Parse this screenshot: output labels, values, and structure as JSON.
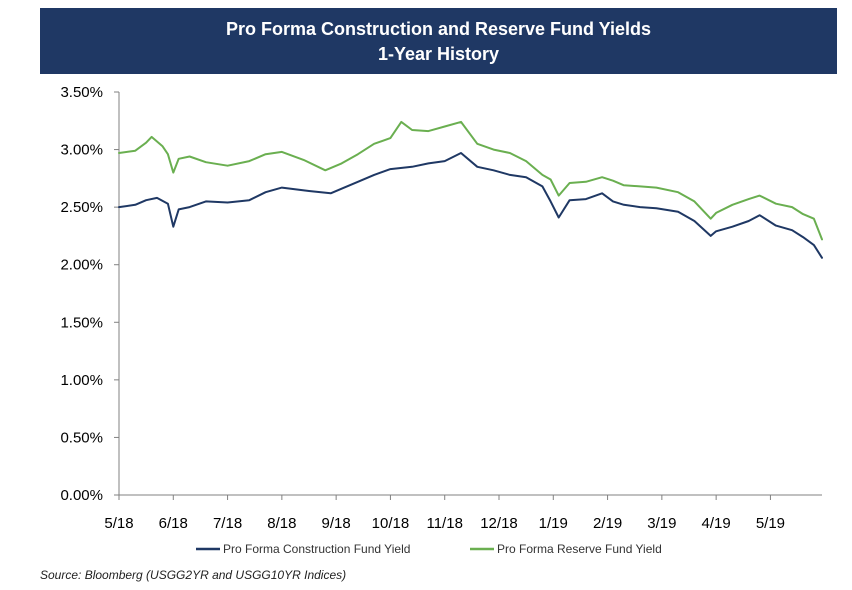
{
  "chart_data": {
    "type": "line",
    "title": "Pro Forma Construction and Reserve Fund Yields",
    "subtitle": "1-Year History",
    "ylim": [
      0,
      3.5
    ],
    "y_ticks": [
      "0.00%",
      "0.50%",
      "1.00%",
      "1.50%",
      "2.00%",
      "2.50%",
      "3.00%",
      "3.50%"
    ],
    "y_tick_values": [
      0,
      0.5,
      1.0,
      1.5,
      2.0,
      2.5,
      3.0,
      3.5
    ],
    "x_ticks": [
      "5/18",
      "6/18",
      "7/18",
      "8/18",
      "9/18",
      "10/18",
      "11/18",
      "12/18",
      "1/19",
      "2/19",
      "3/19",
      "4/19",
      "5/19"
    ],
    "x_tick_values": [
      0,
      1,
      2,
      3,
      4,
      5,
      6,
      7,
      8,
      9,
      10,
      11,
      12
    ],
    "xlim": [
      0,
      12.95
    ],
    "series": [
      {
        "name": "Pro Forma Construction Fund Yield",
        "color": "#1f3864",
        "x": [
          0.0,
          0.3,
          0.5,
          0.7,
          0.9,
          1.0,
          1.1,
          1.3,
          1.6,
          2.0,
          2.4,
          2.7,
          3.0,
          3.5,
          3.9,
          4.1,
          4.4,
          4.7,
          5.0,
          5.4,
          5.7,
          6.0,
          6.3,
          6.6,
          6.9,
          7.2,
          7.5,
          7.8,
          7.95,
          8.1,
          8.3,
          8.6,
          8.9,
          9.1,
          9.3,
          9.6,
          9.9,
          10.3,
          10.6,
          10.9,
          11.0,
          11.3,
          11.6,
          11.8,
          12.1,
          12.4,
          12.6,
          12.8,
          12.95
        ],
        "values": [
          2.5,
          2.52,
          2.56,
          2.58,
          2.53,
          2.33,
          2.48,
          2.5,
          2.55,
          2.54,
          2.56,
          2.63,
          2.67,
          2.64,
          2.62,
          2.66,
          2.72,
          2.78,
          2.83,
          2.85,
          2.88,
          2.9,
          2.97,
          2.85,
          2.82,
          2.78,
          2.76,
          2.68,
          2.55,
          2.41,
          2.56,
          2.57,
          2.62,
          2.55,
          2.52,
          2.5,
          2.49,
          2.46,
          2.38,
          2.25,
          2.29,
          2.33,
          2.38,
          2.43,
          2.34,
          2.3,
          2.24,
          2.17,
          2.06
        ]
      },
      {
        "name": "Pro Forma Reserve Fund Yield",
        "color": "#6aaf50",
        "x": [
          0.0,
          0.3,
          0.5,
          0.6,
          0.8,
          0.9,
          1.0,
          1.1,
          1.3,
          1.6,
          2.0,
          2.4,
          2.7,
          3.0,
          3.4,
          3.8,
          4.1,
          4.4,
          4.7,
          5.0,
          5.2,
          5.4,
          5.7,
          6.0,
          6.3,
          6.6,
          6.9,
          7.2,
          7.5,
          7.8,
          7.95,
          8.1,
          8.3,
          8.6,
          8.9,
          9.1,
          9.3,
          9.6,
          9.9,
          10.3,
          10.6,
          10.9,
          11.0,
          11.3,
          11.6,
          11.8,
          12.1,
          12.4,
          12.6,
          12.8,
          12.95
        ],
        "values": [
          2.97,
          2.99,
          3.06,
          3.11,
          3.03,
          2.96,
          2.8,
          2.92,
          2.94,
          2.89,
          2.86,
          2.9,
          2.96,
          2.98,
          2.91,
          2.82,
          2.88,
          2.96,
          3.05,
          3.1,
          3.24,
          3.17,
          3.16,
          3.2,
          3.24,
          3.05,
          3.0,
          2.97,
          2.9,
          2.78,
          2.74,
          2.6,
          2.71,
          2.72,
          2.76,
          2.73,
          2.69,
          2.68,
          2.67,
          2.63,
          2.55,
          2.4,
          2.45,
          2.52,
          2.57,
          2.6,
          2.53,
          2.5,
          2.44,
          2.4,
          2.22
        ]
      }
    ],
    "legend": "bottom",
    "source": "Source: Bloomberg (USGG2YR  and USGG10YR Indices)"
  }
}
